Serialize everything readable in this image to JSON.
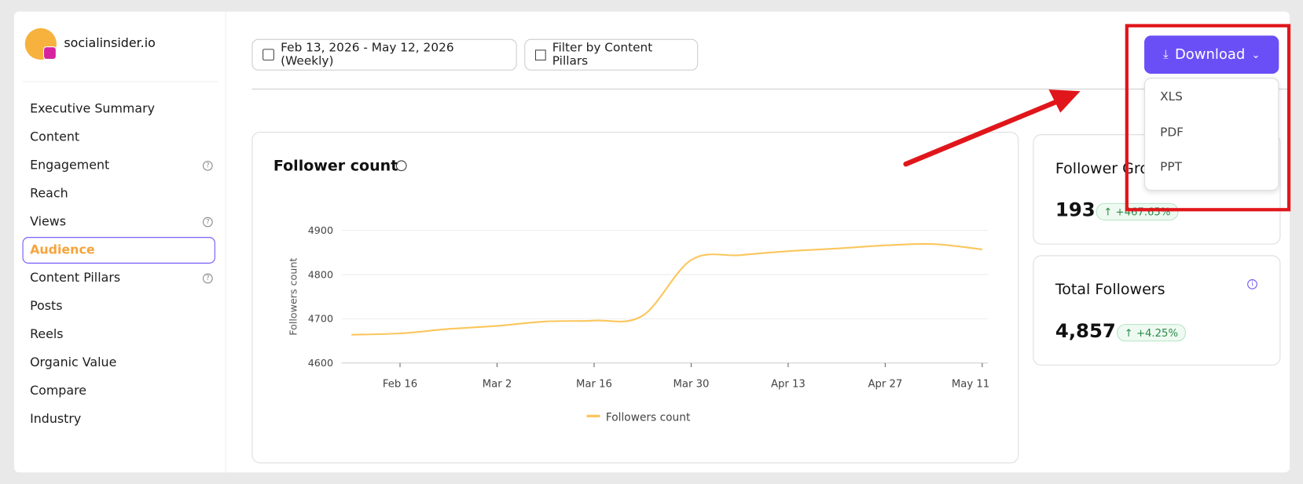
{
  "brand": "socialinsider.io",
  "nav": [
    {
      "label": "Executive Summary"
    },
    {
      "label": "Content"
    },
    {
      "label": "Engagement",
      "help": true
    },
    {
      "label": "Reach"
    },
    {
      "label": "Views",
      "help": true
    },
    {
      "label": "Audience",
      "active": true
    },
    {
      "label": "Content Pillars",
      "help": true
    },
    {
      "label": "Posts"
    },
    {
      "label": "Reels"
    },
    {
      "label": "Organic Value"
    },
    {
      "label": "Compare"
    },
    {
      "label": "Industry"
    }
  ],
  "toolbar": {
    "date_range": "Feb 13, 2026 - May 12, 2026 (Weekly)",
    "filter": "Filter by Content Pillars",
    "download": "Download"
  },
  "download_menu": [
    "XLS",
    "PDF",
    "PPT"
  ],
  "cards": [
    {
      "title": "Follower Growth",
      "value": "193",
      "change": "+467.65%"
    },
    {
      "title": "Total Followers",
      "value": "4,857",
      "change": "+4.25%"
    }
  ],
  "chart_data": {
    "type": "line",
    "title": "Follower count",
    "y_label": "Followers count",
    "x": [
      "2026-02-09",
      "2026-02-16",
      "2026-02-23",
      "2026-03-02",
      "2026-03-09",
      "2026-03-16",
      "2026-03-23",
      "2026-03-30",
      "2026-04-06",
      "2026-04-13",
      "2026-04-20",
      "2026-04-27",
      "2026-05-04",
      "2026-05-11"
    ],
    "series": [
      {
        "name": "Followers count",
        "color": "#fbc65c",
        "values": [
          4664,
          4667,
          4677,
          4684,
          4694,
          4696,
          4707,
          4833,
          4844,
          4853,
          4859,
          4866,
          4869,
          4857
        ]
      }
    ],
    "xlim": [
      "2026-02-09",
      "2026-05-11"
    ],
    "xticks": [
      {
        "value": "2026-02-16",
        "label": "Feb 16"
      },
      {
        "value": "2026-03-02",
        "label": "Mar 2"
      },
      {
        "value": "2026-03-16",
        "label": "Mar 16"
      },
      {
        "value": "2026-03-30",
        "label": "Mar 30"
      },
      {
        "value": "2026-04-13",
        "label": "Apr 13"
      },
      {
        "value": "2026-04-27",
        "label": "Apr 27"
      },
      {
        "value": "2026-05-11",
        "label": "May 11"
      }
    ],
    "ylim": [
      4600,
      4900
    ],
    "yticks": [
      4600,
      4700,
      4800,
      4900
    ],
    "grid": true
  }
}
